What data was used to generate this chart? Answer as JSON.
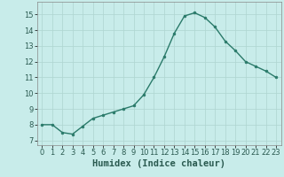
{
  "x": [
    0,
    1,
    2,
    3,
    4,
    5,
    6,
    7,
    8,
    9,
    10,
    11,
    12,
    13,
    14,
    15,
    16,
    17,
    18,
    19,
    20,
    21,
    22,
    23
  ],
  "y": [
    8.0,
    8.0,
    7.5,
    7.4,
    7.9,
    8.4,
    8.6,
    8.8,
    9.0,
    9.2,
    9.9,
    11.0,
    12.3,
    13.8,
    14.9,
    15.1,
    14.8,
    14.2,
    13.3,
    12.7,
    12.0,
    11.7,
    11.4,
    11.0
  ],
  "xlabel": "Humidex (Indice chaleur)",
  "xlim": [
    -0.5,
    23.5
  ],
  "ylim": [
    6.7,
    15.8
  ],
  "yticks": [
    7,
    8,
    9,
    10,
    11,
    12,
    13,
    14,
    15
  ],
  "xticks": [
    0,
    1,
    2,
    3,
    4,
    5,
    6,
    7,
    8,
    9,
    10,
    11,
    12,
    13,
    14,
    15,
    16,
    17,
    18,
    19,
    20,
    21,
    22,
    23
  ],
  "line_color": "#2a7a6a",
  "bg_color": "#c8ecea",
  "grid_color": "#aed4d0",
  "tick_fontsize": 6.0,
  "xlabel_fontsize": 7.5,
  "line_width": 1.0,
  "marker_size": 2.0
}
